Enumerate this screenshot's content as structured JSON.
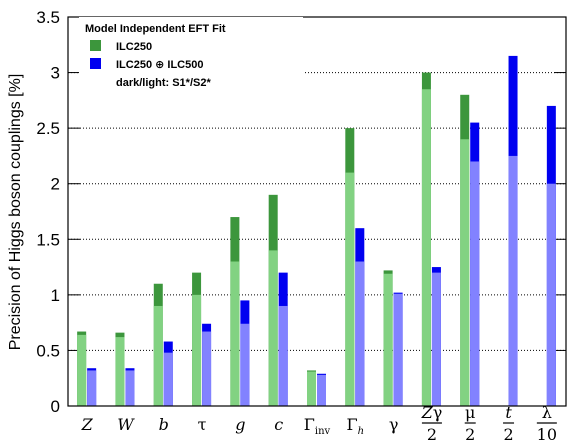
{
  "chart_data": {
    "type": "bar",
    "y_label": "Precision of Higgs boson couplings [%]",
    "legend_title": "Model Independent EFT Fit",
    "legend_note": "dark/light: S1*/S2*",
    "categories": [
      "Z",
      "W",
      "b",
      "τ",
      "g",
      "c",
      "Γinv",
      "Γh",
      "γ",
      "Zγ/2",
      "μ/2",
      "t/2",
      "λ/10"
    ],
    "series": [
      {
        "name": "ILC250",
        "color": "#3c963c",
        "light_color": "#82d282",
        "values": [
          0.67,
          0.66,
          1.1,
          1.2,
          1.7,
          1.9,
          0.32,
          2.5,
          1.22,
          3.0,
          2.8,
          null,
          null
        ],
        "values_light": [
          0.64,
          0.62,
          0.9,
          1.0,
          1.3,
          1.4,
          0.31,
          2.1,
          1.19,
          2.85,
          2.4,
          null,
          null
        ]
      },
      {
        "name": "ILC250 ⊕ ILC500",
        "color": "#0000f0",
        "light_color": "#8282ff",
        "values": [
          0.34,
          0.34,
          0.58,
          0.74,
          0.95,
          1.2,
          0.29,
          1.6,
          1.02,
          1.25,
          2.55,
          3.15,
          2.7
        ],
        "values_light": [
          0.32,
          0.32,
          0.48,
          0.67,
          0.74,
          0.9,
          0.28,
          1.3,
          1.01,
          1.2,
          2.2,
          2.25,
          2.0
        ]
      }
    ],
    "ylim": [
      0,
      3.5
    ],
    "yticks": [
      0,
      0.5,
      1,
      1.5,
      2,
      2.5,
      3,
      3.5
    ],
    "grid": true
  }
}
